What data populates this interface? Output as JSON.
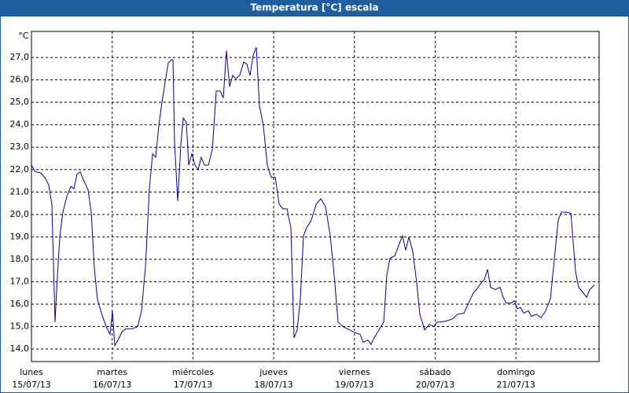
{
  "chart_data": {
    "type": "line",
    "title": "Temperatura [°C] escala",
    "ylabel": "°C",
    "xlim": [
      0,
      7.03
    ],
    "ylim": [
      13.44,
      28.16
    ],
    "grid": true,
    "xticks": [
      {
        "value": 0,
        "label": "lunes",
        "sublabel": "15/07/13"
      },
      {
        "value": 1,
        "label": "martes",
        "sublabel": "16/07/13"
      },
      {
        "value": 2,
        "label": "miércoles",
        "sublabel": "17/07/13"
      },
      {
        "value": 3,
        "label": "jueves",
        "sublabel": "18/07/13"
      },
      {
        "value": 4,
        "label": "viernes",
        "sublabel": "19/07/13"
      },
      {
        "value": 5,
        "label": "sábado",
        "sublabel": "20/07/13"
      },
      {
        "value": 6,
        "label": "domingo",
        "sublabel": "21/07/13"
      }
    ],
    "yticks": [
      {
        "value": 14,
        "label": "14,0"
      },
      {
        "value": 15,
        "label": "15,0"
      },
      {
        "value": 16,
        "label": "16,0"
      },
      {
        "value": 17,
        "label": "17,0"
      },
      {
        "value": 18,
        "label": "18,0"
      },
      {
        "value": 19,
        "label": "19,0"
      },
      {
        "value": 20,
        "label": "20,0"
      },
      {
        "value": 21,
        "label": "21,0"
      },
      {
        "value": 22,
        "label": "22,0"
      },
      {
        "value": 23,
        "label": "23,0"
      },
      {
        "value": 24,
        "label": "24,0"
      },
      {
        "value": 25,
        "label": "25,0"
      },
      {
        "value": 26,
        "label": "26,0"
      },
      {
        "value": 27,
        "label": "27,0"
      }
    ],
    "x": [
      0,
      0.049,
      0.117,
      0.175,
      0.214,
      0.253,
      0.292,
      0.312,
      0.351,
      0.389,
      0.438,
      0.487,
      0.526,
      0.565,
      0.604,
      0.643,
      0.701,
      0.74,
      0.779,
      0.818,
      0.876,
      0.925,
      0.974,
      1.003,
      1.032,
      1.071,
      1.12,
      1.168,
      1.246,
      1.315,
      1.363,
      1.412,
      1.461,
      1.5,
      1.538,
      1.577,
      1.616,
      1.655,
      1.694,
      1.733,
      1.753,
      1.772,
      1.811,
      1.85,
      1.879,
      1.918,
      1.947,
      1.986,
      2.025,
      2.064,
      2.103,
      2.142,
      2.191,
      2.24,
      2.288,
      2.337,
      2.376,
      2.415,
      2.454,
      2.493,
      2.532,
      2.58,
      2.629,
      2.668,
      2.707,
      2.746,
      2.785,
      2.824,
      2.872,
      2.921,
      2.97,
      3.019,
      3.067,
      3.116,
      3.165,
      3.213,
      3.252,
      3.291,
      3.33,
      3.369,
      3.408,
      3.466,
      3.525,
      3.583,
      3.642,
      3.7,
      3.749,
      3.797,
      3.856,
      3.914,
      3.992,
      4.07,
      4.109,
      4.167,
      4.206,
      4.245,
      4.304,
      4.362,
      4.401,
      4.44,
      4.498,
      4.557,
      4.596,
      4.635,
      4.674,
      4.722,
      4.771,
      4.81,
      4.869,
      4.927,
      4.985,
      5.024,
      5.063,
      5.141,
      5.219,
      5.277,
      5.355,
      5.414,
      5.472,
      5.511,
      5.57,
      5.609,
      5.648,
      5.686,
      5.745,
      5.803,
      5.842,
      5.881,
      5.94,
      5.979,
      6.018,
      6.056,
      6.095,
      6.154,
      6.193,
      6.251,
      6.31,
      6.368,
      6.427,
      6.485,
      6.524,
      6.563,
      6.621,
      6.68,
      6.738,
      6.777,
      6.836,
      6.874,
      6.913,
      6.972
    ],
    "series": [
      {
        "name": "Temperatura",
        "color": "#000099",
        "values": [
          22.2,
          21.9,
          21.85,
          21.6,
          21.3,
          20.45,
          15.2,
          16.6,
          19.0,
          20.1,
          20.8,
          21.25,
          21.15,
          21.8,
          21.9,
          21.55,
          21.1,
          20.1,
          17.6,
          16.2,
          15.5,
          15.0,
          14.65,
          15.7,
          14.15,
          14.4,
          14.75,
          14.9,
          14.9,
          15.0,
          15.7,
          17.65,
          21.15,
          22.7,
          22.55,
          23.95,
          25.0,
          25.9,
          26.75,
          26.9,
          26.9,
          23.25,
          20.6,
          23.1,
          24.3,
          24.1,
          22.2,
          22.7,
          22.2,
          22.0,
          22.55,
          22.2,
          22.2,
          22.9,
          25.5,
          25.5,
          25.2,
          27.3,
          25.7,
          26.2,
          26.05,
          26.2,
          26.8,
          26.7,
          26.2,
          27.1,
          27.45,
          24.85,
          23.95,
          22.2,
          21.65,
          21.65,
          20.45,
          20.25,
          20.25,
          19.4,
          14.5,
          14.85,
          16.25,
          19.05,
          19.4,
          19.75,
          20.45,
          20.7,
          20.35,
          19.05,
          17.3,
          15.2,
          15.0,
          14.9,
          14.75,
          14.65,
          14.3,
          14.4,
          14.2,
          14.5,
          14.85,
          15.2,
          17.3,
          18.05,
          18.15,
          18.7,
          19.05,
          18.4,
          19.0,
          18.35,
          16.95,
          15.55,
          14.85,
          15.1,
          15.0,
          15.2,
          15.2,
          15.25,
          15.35,
          15.55,
          15.6,
          16.05,
          16.5,
          16.65,
          16.95,
          17.1,
          17.55,
          16.75,
          16.65,
          16.75,
          16.3,
          16.05,
          16.05,
          16.15,
          15.8,
          15.85,
          15.6,
          15.7,
          15.45,
          15.55,
          15.4,
          15.7,
          16.25,
          18.35,
          19.75,
          20.1,
          20.1,
          20.05,
          17.45,
          16.75,
          16.5,
          16.3,
          16.65,
          16.85
        ]
      }
    ]
  }
}
